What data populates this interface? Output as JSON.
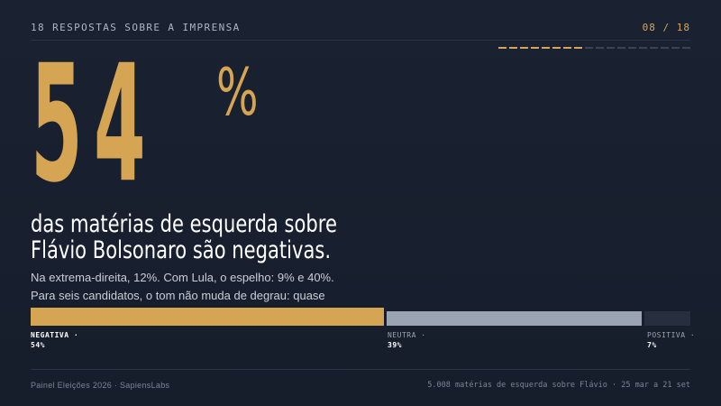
{
  "header": {
    "section_label": "18 RESPOSTAS SOBRE A IMPRENSA",
    "page_counter": "08 / 18",
    "progress": {
      "current": 8,
      "total": 18
    }
  },
  "hero": {
    "number": "54",
    "unit": "%",
    "headline_line1": "das matérias de esquerda sobre",
    "headline_line2": "Flávio Bolsonaro são negativas.",
    "body": "Na extrema-direita, 12%. Com Lula, o espelho: 9% e 40%. Para seis candidatos, o tom não muda de degrau: quase não há tom."
  },
  "tone_bar": {
    "segments": [
      {
        "name": "NEGATIVA ·",
        "percent_label": "54%",
        "value": 54,
        "color": "#d6a553"
      },
      {
        "name": "NEUTRA ·",
        "percent_label": "39%",
        "value": 39,
        "color": "#9aa4b3"
      },
      {
        "name": "POSITIVA ·",
        "percent_label": "7%",
        "value": 7,
        "color": "#272f3e"
      }
    ]
  },
  "footer": {
    "left": "Painel Eleições 2026 · SapiensLabs",
    "right": "5.008 matérias de esquerda sobre Flávio · 25 mar a 21 set"
  },
  "colors": {
    "accent": "#d6a553",
    "background": "#1a2232",
    "neutral": "#9aa4b3"
  }
}
